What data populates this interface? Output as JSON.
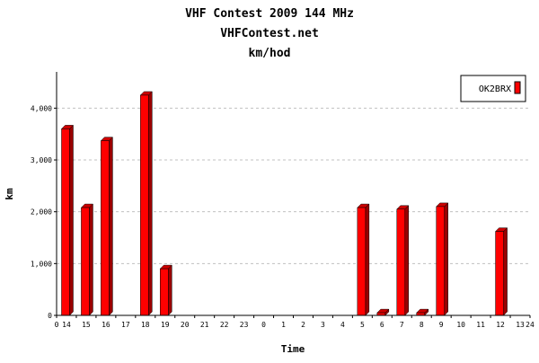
{
  "chart_data": {
    "type": "bar",
    "title_lines": [
      "VHF Contest 2009 144 MHz",
      "VHFContest.net",
      "km/hod"
    ],
    "xlabel": "Time",
    "ylabel": "km",
    "categories": [
      "14",
      "15",
      "16",
      "17",
      "18",
      "19",
      "20",
      "21",
      "22",
      "23",
      "0",
      "1",
      "2",
      "3",
      "4",
      "5",
      "6",
      "7",
      "8",
      "9",
      "10",
      "11",
      "12",
      "13"
    ],
    "x_axis_start_label": "0",
    "x_axis_end_label": "24",
    "series": [
      {
        "name": "OK2BRX",
        "values": [
          3600,
          2080,
          3370,
          0,
          4250,
          900,
          0,
          0,
          0,
          0,
          0,
          0,
          0,
          0,
          0,
          2080,
          50,
          2050,
          50,
          2100,
          0,
          0,
          1620,
          0
        ]
      }
    ],
    "yticks": [
      0,
      1000,
      2000,
      3000,
      4000
    ],
    "ytick_labels": [
      "0",
      "1,000",
      "2,000",
      "3,000",
      "4,000"
    ],
    "ylim": [
      0,
      4700
    ],
    "grid": true,
    "legend_position": "top-right",
    "colors": {
      "bar_front": "#ff0000",
      "bar_side": "#990000",
      "bar_top": "#cc0000",
      "grid": "#c0c0c0",
      "axis": "#000000"
    }
  }
}
